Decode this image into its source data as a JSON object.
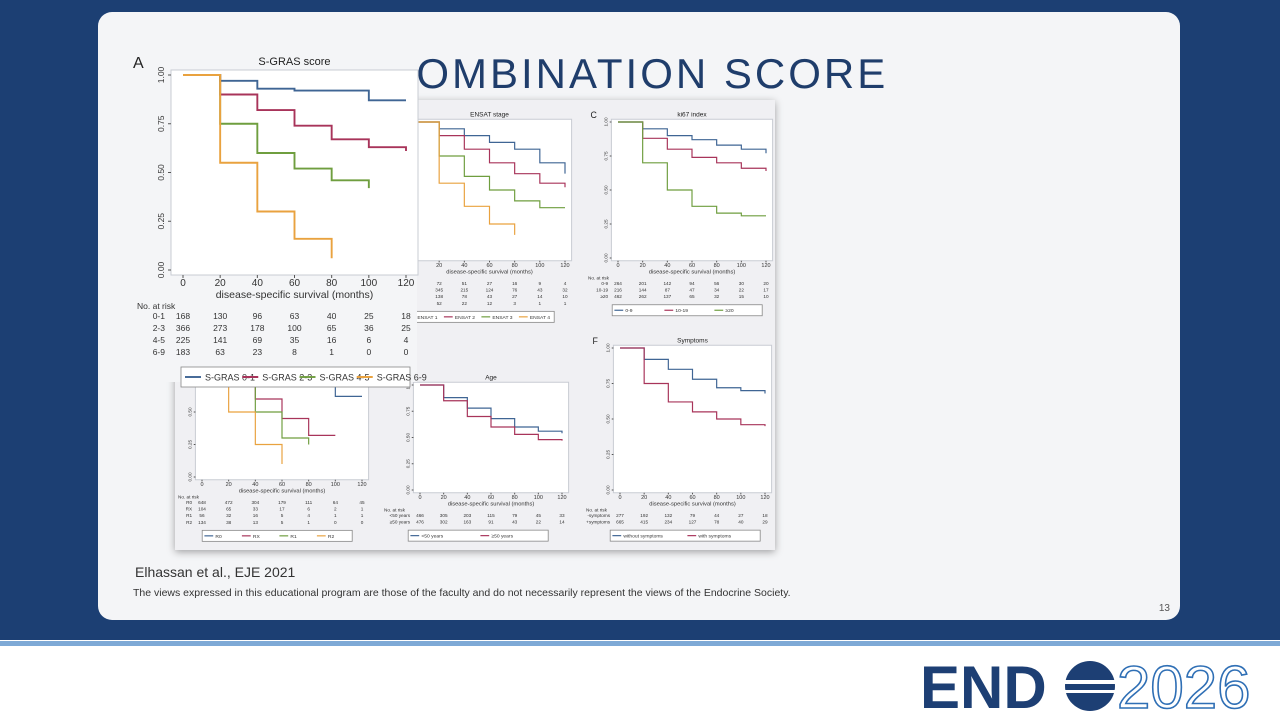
{
  "slide": {
    "title": "COMBINATION SCORE",
    "citation": "Elhassan et al., EJE 2021",
    "disclaimer": "The views expressed in this educational program are those of the faculty and do not necessarily represent the views of the Endocrine Society.",
    "page_number": "13",
    "logo": {
      "brand": "END",
      "year": "2026"
    }
  },
  "axes": {
    "xticks": [
      0,
      20,
      40,
      60,
      80,
      100,
      120
    ],
    "yticks": [
      {
        "value": 0,
        "label": "0.00"
      },
      {
        "value": 0.25,
        "label": "0.25"
      },
      {
        "value": 0.5,
        "label": "0.50"
      },
      {
        "value": 0.75,
        "label": "0.75"
      },
      {
        "value": 1,
        "label": "1.00"
      }
    ],
    "xlabel": "disease-specific survival (months)",
    "risk_label": "No. at risk"
  },
  "panels": [
    {
      "letter": "A",
      "title": "S-GRAS score",
      "series": [
        {
          "name": "S-GRAS 0-1",
          "risk_label": "0-1",
          "color": "#3f6594",
          "values": [
            1,
            0.97,
            0.93,
            0.92,
            0.92,
            0.87,
            0.87
          ],
          "risk": [
            168,
            130,
            96,
            63,
            40,
            25,
            18
          ]
        },
        {
          "name": "S-GRAS 2-3",
          "risk_label": "2-3",
          "color": "#a8345a",
          "values": [
            1,
            0.9,
            0.82,
            0.74,
            0.67,
            0.63,
            0.61
          ],
          "risk": [
            366,
            273,
            178,
            100,
            65,
            36,
            25
          ]
        },
        {
          "name": "S-GRAS 4-5",
          "risk_label": "4-5",
          "color": "#6f9e3f",
          "values": [
            1,
            0.75,
            0.6,
            0.52,
            0.46,
            0.42,
            null
          ],
          "risk": [
            225,
            141,
            69,
            35,
            16,
            6,
            4
          ]
        },
        {
          "name": "S-GRAS 6-9",
          "risk_label": "6-9",
          "color": "#e9a23f",
          "values": [
            1,
            0.55,
            0.3,
            0.16,
            0.06,
            null,
            null
          ],
          "risk": [
            183,
            63,
            23,
            8,
            1,
            0,
            0
          ]
        }
      ]
    },
    {
      "title": "ENSAT stage",
      "series": [
        {
          "name": "ENSAT 1",
          "color": "#3f6594",
          "values": [
            1,
            0.95,
            0.9,
            0.85,
            0.8,
            0.7,
            0.62
          ],
          "risk": [
            72,
            51,
            27,
            16,
            9,
            4
          ]
        },
        {
          "name": "ENSAT 2",
          "color": "#a8345a",
          "values": [
            1,
            0.9,
            0.8,
            0.7,
            0.62,
            0.55,
            0.52
          ],
          "risk": [
            345,
            215,
            124,
            76,
            43,
            32
          ]
        },
        {
          "name": "ENSAT 3",
          "color": "#6f9e3f",
          "values": [
            1,
            0.75,
            0.6,
            0.5,
            0.42,
            0.37,
            0.37
          ],
          "risk": [
            138,
            78,
            43,
            27,
            14,
            10
          ]
        },
        {
          "name": "ENSAT 4",
          "color": "#e9a23f",
          "values": [
            1,
            0.55,
            0.38,
            0.25,
            0.17,
            null,
            null
          ],
          "risk": [
            52,
            22,
            12,
            3,
            1,
            1
          ]
        }
      ]
    },
    {
      "letter": "C",
      "title": "ki67 index",
      "series": [
        {
          "name": "0-9",
          "risk_label": "0-9",
          "color": "#3f6594",
          "values": [
            1,
            0.95,
            0.9,
            0.87,
            0.83,
            0.8,
            0.77
          ],
          "risk": [
            264,
            201,
            142,
            94,
            56,
            30,
            20
          ]
        },
        {
          "name": "10-19",
          "risk_label": "10-19",
          "color": "#a8345a",
          "values": [
            1,
            0.88,
            0.8,
            0.74,
            0.7,
            0.66,
            0.64
          ],
          "risk": [
            216,
            144,
            87,
            47,
            34,
            22,
            17
          ]
        },
        {
          "name": "≥20",
          "risk_label": "≥20",
          "color": "#6f9e3f",
          "values": [
            1,
            0.7,
            0.5,
            0.38,
            0.33,
            0.31,
            0.31
          ],
          "risk": [
            462,
            262,
            137,
            65,
            32,
            15,
            10
          ]
        }
      ]
    },
    {
      "series": [
        {
          "name": "R0",
          "risk_label": "R0",
          "color": "#3f6594",
          "values": [
            1,
            0.93,
            0.85,
            0.75,
            0.7,
            0.62,
            0.62
          ],
          "risk": [
            648,
            472,
            304,
            179,
            111,
            64,
            45
          ]
        },
        {
          "name": "RX",
          "risk_label": "RX",
          "color": "#a8345a",
          "values": [
            1,
            0.8,
            0.6,
            0.45,
            0.32,
            0.32,
            null
          ],
          "risk": [
            104,
            65,
            33,
            17,
            6,
            2,
            1
          ]
        },
        {
          "name": "R1",
          "risk_label": "R1",
          "color": "#6f9e3f",
          "values": [
            1,
            0.7,
            0.5,
            0.3,
            0.25,
            null,
            null
          ],
          "risk": [
            56,
            32,
            16,
            5,
            4,
            1,
            1
          ]
        },
        {
          "name": "R2",
          "risk_label": "R2",
          "color": "#e9a23f",
          "values": [
            1,
            0.5,
            0.25,
            0.1,
            null,
            null,
            null
          ],
          "risk": [
            134,
            38,
            13,
            5,
            1,
            0,
            0
          ]
        }
      ]
    },
    {
      "title": "Age",
      "series": [
        {
          "name": "<50 years",
          "risk_label": "<50 years",
          "color": "#3f6594",
          "values": [
            1,
            0.88,
            0.78,
            0.68,
            0.6,
            0.56,
            0.54
          ],
          "risk": [
            466,
            305,
            203,
            115,
            79,
            45,
            33
          ]
        },
        {
          "name": "≥50 years",
          "risk_label": "≥50 years",
          "color": "#a8345a",
          "values": [
            1,
            0.85,
            0.7,
            0.6,
            0.53,
            0.48,
            0.47
          ],
          "risk": [
            476,
            302,
            163,
            91,
            43,
            22,
            14
          ]
        }
      ]
    },
    {
      "letter": "F",
      "title": "Symptoms",
      "series": [
        {
          "name": "without symptoms",
          "risk_label": "-symptoms",
          "color": "#3f6594",
          "values": [
            1,
            0.92,
            0.85,
            0.78,
            0.72,
            0.7,
            0.68
          ],
          "risk": [
            277,
            192,
            132,
            79,
            44,
            27,
            18
          ]
        },
        {
          "name": "with symptoms",
          "risk_label": "+symptoms",
          "color": "#a8345a",
          "values": [
            1,
            0.75,
            0.62,
            0.55,
            0.5,
            0.46,
            0.45
          ],
          "risk": [
            665,
            415,
            234,
            127,
            78,
            40,
            29
          ]
        }
      ]
    }
  ]
}
